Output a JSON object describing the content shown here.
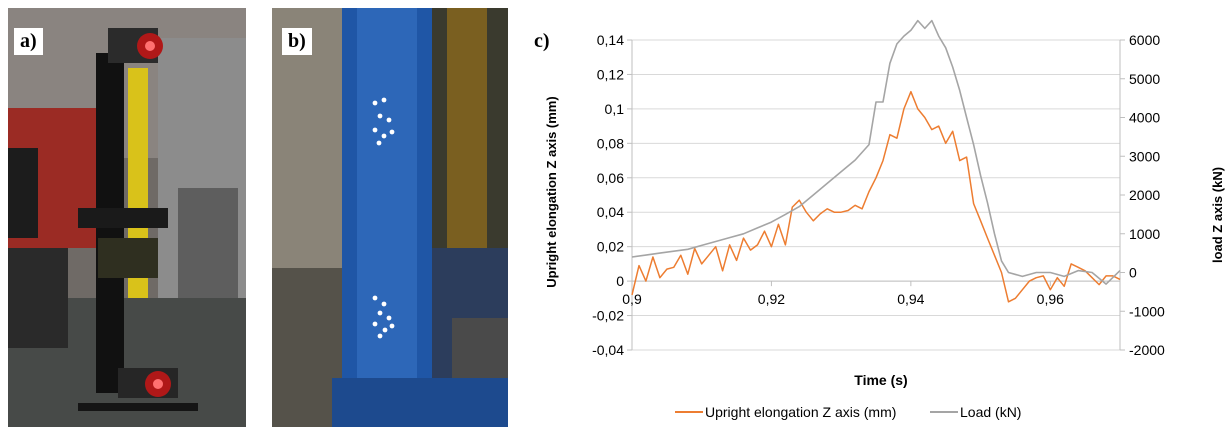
{
  "panels": {
    "a": "a)",
    "b": "b)",
    "c": "c)"
  },
  "chart_data": {
    "type": "line",
    "xlabel": "Time (s)",
    "ylabel_left": "Upright elongation Z axis (mm)",
    "ylabel_right": "load Z axis (kN)",
    "xlim": [
      0.9,
      0.97
    ],
    "ylim_left": [
      -0.04,
      0.14
    ],
    "ylim_right": [
      -2000,
      6000
    ],
    "x_ticks": [
      "0,9",
      "0,92",
      "0,94",
      "0,96"
    ],
    "x_tick_values": [
      0.9,
      0.92,
      0.94,
      0.96
    ],
    "y_left_ticks": [
      "-0,04",
      "-0,02",
      "0",
      "0,02",
      "0,04",
      "0,06",
      "0,08",
      "0,1",
      "0,12",
      "0,14"
    ],
    "y_left_tick_values": [
      -0.04,
      -0.02,
      0,
      0.02,
      0.04,
      0.06,
      0.08,
      0.1,
      0.12,
      0.14
    ],
    "y_right_ticks": [
      "-2000",
      "-1000",
      "0",
      "1000",
      "2000",
      "3000",
      "4000",
      "5000",
      "6000"
    ],
    "y_right_tick_values": [
      -2000,
      -1000,
      0,
      1000,
      2000,
      3000,
      4000,
      5000,
      6000
    ],
    "grid": "horizontal",
    "legend_position": "bottom",
    "series": [
      {
        "name": "Upright elongation Z axis (mm)",
        "axis": "left",
        "color": "#ED7D31",
        "x": [
          0.9,
          0.901,
          0.902,
          0.903,
          0.904,
          0.905,
          0.906,
          0.907,
          0.908,
          0.909,
          0.91,
          0.911,
          0.912,
          0.913,
          0.914,
          0.915,
          0.916,
          0.917,
          0.918,
          0.919,
          0.92,
          0.921,
          0.922,
          0.923,
          0.924,
          0.925,
          0.926,
          0.927,
          0.928,
          0.929,
          0.93,
          0.931,
          0.932,
          0.933,
          0.934,
          0.935,
          0.936,
          0.937,
          0.938,
          0.939,
          0.94,
          0.941,
          0.942,
          0.943,
          0.944,
          0.945,
          0.946,
          0.947,
          0.948,
          0.949,
          0.95,
          0.951,
          0.952,
          0.953,
          0.954,
          0.955,
          0.956,
          0.957,
          0.958,
          0.959,
          0.96,
          0.961,
          0.962,
          0.963,
          0.964,
          0.965,
          0.966,
          0.967,
          0.968,
          0.969,
          0.97
        ],
        "values": [
          -0.008,
          0.009,
          0.0,
          0.014,
          0.002,
          0.007,
          0.008,
          0.015,
          0.004,
          0.019,
          0.01,
          0.015,
          0.02,
          0.006,
          0.021,
          0.012,
          0.025,
          0.018,
          0.021,
          0.029,
          0.02,
          0.033,
          0.021,
          0.043,
          0.047,
          0.04,
          0.035,
          0.039,
          0.042,
          0.04,
          0.04,
          0.041,
          0.044,
          0.042,
          0.052,
          0.06,
          0.07,
          0.085,
          0.083,
          0.1,
          0.11,
          0.1,
          0.095,
          0.088,
          0.09,
          0.08,
          0.087,
          0.07,
          0.072,
          0.045,
          0.035,
          0.025,
          0.015,
          0.005,
          -0.012,
          -0.01,
          -0.005,
          0.0,
          0.002,
          0.003,
          -0.005,
          0.002,
          -0.003,
          0.01,
          0.008,
          0.006,
          0.002,
          -0.002,
          0.003,
          0.003,
          0.001
        ]
      },
      {
        "name": "Load (kN)",
        "axis": "right",
        "color": "#A5A5A5",
        "x": [
          0.9,
          0.902,
          0.904,
          0.906,
          0.908,
          0.91,
          0.912,
          0.914,
          0.916,
          0.918,
          0.92,
          0.922,
          0.924,
          0.926,
          0.928,
          0.93,
          0.932,
          0.934,
          0.935,
          0.936,
          0.937,
          0.938,
          0.939,
          0.94,
          0.941,
          0.942,
          0.943,
          0.944,
          0.945,
          0.946,
          0.947,
          0.948,
          0.949,
          0.95,
          0.951,
          0.952,
          0.953,
          0.954,
          0.956,
          0.958,
          0.96,
          0.962,
          0.964,
          0.966,
          0.968,
          0.97
        ],
        "values": [
          400,
          450,
          500,
          550,
          600,
          700,
          800,
          900,
          1000,
          1150,
          1300,
          1500,
          1700,
          2000,
          2300,
          2600,
          2900,
          3300,
          4400,
          4400,
          5400,
          5900,
          6100,
          6250,
          6500,
          6300,
          6500,
          6100,
          5800,
          5300,
          4700,
          4000,
          3300,
          2500,
          1800,
          1000,
          300,
          0,
          -100,
          0,
          0,
          -100,
          50,
          0,
          -300,
          50
        ]
      }
    ]
  }
}
